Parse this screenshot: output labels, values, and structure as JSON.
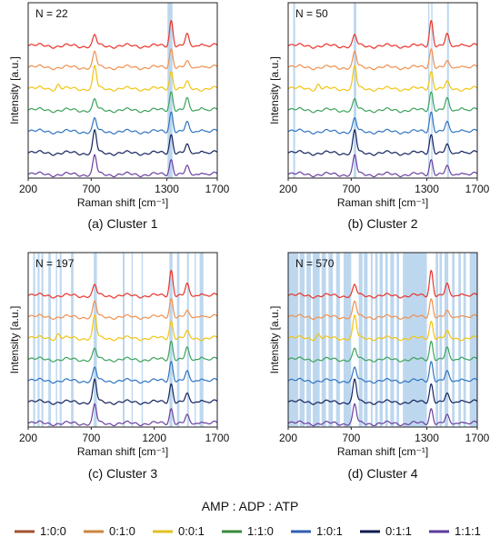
{
  "chart_data": [
    {
      "type": "line",
      "caption": "(a) Cluster 1",
      "n_label": "N = 22",
      "xlabel": "Raman shift [cm⁻¹]",
      "ylabel": "Intensity [a.u.]",
      "xlim": [
        200,
        1700
      ],
      "xticks": [
        200,
        700,
        1300,
        1700
      ],
      "shaded_bands": [
        [
          1305,
          1345
        ]
      ],
      "series": [
        "1:0:0",
        "0:1:0",
        "0:0:1",
        "1:1:0",
        "1:0:1",
        "0:1:1",
        "1:1:1"
      ]
    },
    {
      "type": "line",
      "caption": "(b) Cluster 2",
      "n_label": "N = 50",
      "xlabel": "Raman shift [cm⁻¹]",
      "ylabel": "Intensity [a.u.]",
      "xlim": [
        200,
        1700
      ],
      "xticks": [
        200,
        700,
        1300,
        1700
      ],
      "shaded_bands": [
        [
          240,
          255
        ],
        [
          720,
          740
        ],
        [
          1310,
          1320
        ],
        [
          1335,
          1345
        ],
        [
          1460,
          1475
        ]
      ],
      "series": [
        "1:0:0",
        "0:1:0",
        "0:0:1",
        "1:1:0",
        "1:0:1",
        "0:1:1",
        "1:1:1"
      ]
    },
    {
      "type": "line",
      "caption": "(c) Cluster 3",
      "n_label": "N = 197",
      "xlabel": "Raman shift [cm⁻¹]",
      "ylabel": "Intensity [a.u.]",
      "xlim": [
        200,
        1700
      ],
      "xticks": [
        200,
        700,
        1200,
        1700
      ],
      "shaded_bands": [
        [
          240,
          255
        ],
        [
          275,
          290
        ],
        [
          305,
          320
        ],
        [
          360,
          380
        ],
        [
          420,
          430
        ],
        [
          450,
          465
        ],
        [
          540,
          560
        ],
        [
          720,
          745
        ],
        [
          950,
          965
        ],
        [
          1020,
          1030
        ],
        [
          1100,
          1110
        ],
        [
          1320,
          1345
        ],
        [
          1380,
          1400
        ],
        [
          1460,
          1475
        ],
        [
          1520,
          1530
        ],
        [
          1560,
          1590
        ]
      ],
      "series": [
        "1:0:0",
        "0:1:0",
        "0:0:1",
        "1:1:0",
        "1:0:1",
        "0:1:1",
        "1:1:1"
      ]
    },
    {
      "type": "line",
      "caption": "(d) Cluster 4",
      "n_label": "N = 570",
      "xlabel": "Raman shift [cm⁻¹]",
      "ylabel": "Intensity [a.u.]",
      "xlim": [
        200,
        1700
      ],
      "xticks": [
        200,
        700,
        1300,
        1700
      ],
      "shaded_bands": [
        [
          200,
          280
        ],
        [
          290,
          330
        ],
        [
          345,
          380
        ],
        [
          395,
          450
        ],
        [
          465,
          500
        ],
        [
          520,
          555
        ],
        [
          580,
          610
        ],
        [
          640,
          700
        ],
        [
          760,
          790
        ],
        [
          800,
          830
        ],
        [
          855,
          870
        ],
        [
          890,
          910
        ],
        [
          925,
          950
        ],
        [
          970,
          990
        ],
        [
          1010,
          1040
        ],
        [
          1060,
          1080
        ],
        [
          1110,
          1300
        ],
        [
          1370,
          1390
        ],
        [
          1400,
          1420
        ],
        [
          1440,
          1470
        ],
        [
          1500,
          1520
        ],
        [
          1550,
          1570
        ],
        [
          1590,
          1610
        ],
        [
          1640,
          1700
        ]
      ],
      "series": [
        "1:0:0",
        "0:1:0",
        "0:0:1",
        "1:1:0",
        "1:0:1",
        "0:1:1",
        "1:1:1"
      ]
    }
  ],
  "legend": {
    "title": "AMP : ADP : ATP",
    "items": [
      {
        "label": "1:0:0",
        "color": "#e8332a"
      },
      {
        "label": "0:1:0",
        "color": "#f0904f"
      },
      {
        "label": "0:0:1",
        "color": "#f2c40f"
      },
      {
        "label": "1:1:0",
        "color": "#3aa35a"
      },
      {
        "label": "1:0:1",
        "color": "#2f74c0"
      },
      {
        "label": "0:1:1",
        "color": "#13235e"
      },
      {
        "label": "1:1:1",
        "color": "#6a3fa0"
      }
    ],
    "swatch_colors": [
      "#a0522d",
      "#cd853f",
      "#e0c020",
      "#3a8a3a",
      "#2f5fb0",
      "#0e1b4d",
      "#5a3a9a"
    ]
  },
  "band_color": "#5b9bd5"
}
